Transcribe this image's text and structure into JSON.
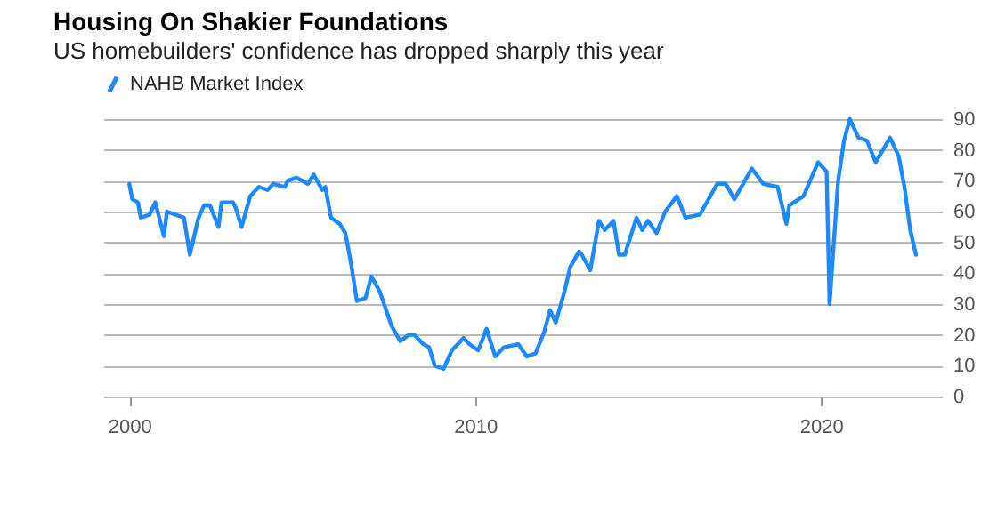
{
  "chart_data": {
    "type": "line",
    "title": "Housing On Shakier Foundations",
    "subtitle": "US homebuilders' confidence has dropped sharply this year",
    "x": [
      "2000-01",
      "2000-02",
      "2000-04",
      "2000-05",
      "2000-08",
      "2000-10",
      "2001-01",
      "2001-02",
      "2001-05",
      "2001-08",
      "2001-10",
      "2002-01",
      "2002-03",
      "2002-05",
      "2002-08",
      "2002-09",
      "2003-01",
      "2003-02",
      "2003-04",
      "2003-07",
      "2003-10",
      "2004-01",
      "2004-03",
      "2004-07",
      "2004-08",
      "2004-11",
      "2005-03",
      "2005-05",
      "2005-08",
      "2005-09",
      "2005-11",
      "2006-02",
      "2006-04",
      "2006-06",
      "2006-08",
      "2006-11",
      "2007-01",
      "2007-04",
      "2007-08",
      "2007-11",
      "2008-02",
      "2008-04",
      "2008-07",
      "2008-09",
      "2008-11",
      "2009-02",
      "2009-05",
      "2009-09",
      "2009-11",
      "2010-02",
      "2010-03",
      "2010-05",
      "2010-08",
      "2010-11",
      "2011-04",
      "2011-07",
      "2011-10",
      "2012-01",
      "2012-03",
      "2012-05",
      "2012-08",
      "2012-10",
      "2013-01",
      "2013-02",
      "2013-05",
      "2013-08",
      "2013-10",
      "2014-01",
      "2014-03",
      "2014-05",
      "2014-09",
      "2014-11",
      "2015-01",
      "2015-04",
      "2015-07",
      "2015-11",
      "2016-02",
      "2016-07",
      "2016-10",
      "2017-01",
      "2017-04",
      "2017-07",
      "2018-01",
      "2018-05",
      "2018-10",
      "2019-01",
      "2019-02",
      "2019-07",
      "2019-12",
      "2020-03",
      "2020-04",
      "2020-07",
      "2020-09",
      "2020-11",
      "2021-02",
      "2021-05",
      "2021-08",
      "2022-01",
      "2022-04",
      "2022-06",
      "2022-08",
      "2022-10"
    ],
    "series": [
      {
        "name": "NAHB Market Index",
        "color": "#1e88ff",
        "values": [
          69,
          64,
          63,
          58,
          59,
          63,
          52,
          60,
          59,
          58,
          46,
          58,
          62,
          62,
          55,
          63,
          63,
          61,
          55,
          65,
          68,
          67,
          69,
          68,
          70,
          71,
          69,
          72,
          67,
          68,
          58,
          56,
          53,
          43,
          31,
          32,
          39,
          34,
          23,
          18,
          20,
          20,
          17,
          16,
          10,
          9,
          15,
          19,
          17,
          15,
          17,
          22,
          13,
          16,
          17,
          13,
          14,
          21,
          28,
          24,
          34,
          42,
          47,
          46,
          41,
          57,
          54,
          57,
          46,
          46,
          58,
          54,
          57,
          53,
          60,
          65,
          58,
          59,
          64,
          69,
          69,
          64,
          74,
          69,
          68,
          56,
          62,
          65,
          76,
          73,
          30,
          70,
          83,
          90,
          84,
          83,
          76,
          84,
          78,
          68,
          54,
          46
        ]
      }
    ],
    "xlim": [
      "1999-04",
      "2023-07"
    ],
    "xticks": [
      "2000",
      "2010",
      "2020"
    ],
    "ylim": [
      0,
      90
    ],
    "yticks": [
      0,
      10,
      20,
      30,
      40,
      50,
      60,
      70,
      80,
      90
    ],
    "grid": "y",
    "legend": "top left",
    "line_style": "solid"
  }
}
